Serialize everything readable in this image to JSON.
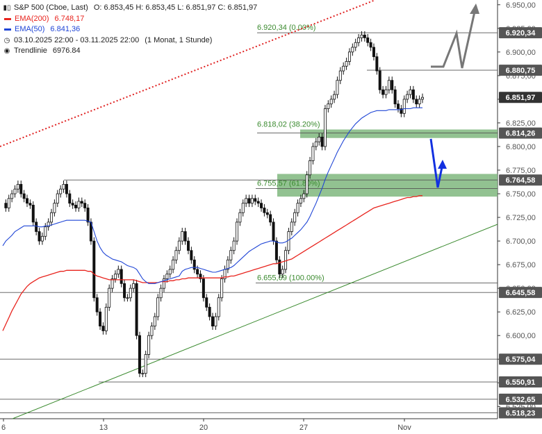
{
  "legend": {
    "title": "S&P 500 (Cboe, Last)",
    "ohlc": "O: 6.853,45   H: 6.853,45   L: 6.851,97   C: 6.851,97",
    "ema200_label": "EMA(200)",
    "ema200_value": "6.748,17",
    "ema50_label": "EMA(50)",
    "ema50_value": "6.841,36",
    "range": "03.10.2025 22:00 - 03.11.2025 22:00",
    "period": "(1 Monat, 1 Stunde)",
    "trend_label": "Trendlinie",
    "trend_value": "6976.84"
  },
  "colors": {
    "ema200": "#e8231d",
    "ema50": "#1f45d6",
    "zone": "#7fb77e",
    "up_trend": "#3a8a2e",
    "fib": "#3a8a2e",
    "arrow_blue": "#1230e0",
    "arrow_grey": "#777777",
    "dotted": "#e02020",
    "price_tag": "#555555"
  },
  "chart_data": {
    "type": "line",
    "y_axis_ticks": [
      "6.950,00",
      "6.925,00",
      "6.900,00",
      "6.875,00",
      "6.850,00",
      "6.825,00",
      "6.800,00",
      "6.775,00",
      "6.750,00",
      "6.725,00",
      "6.700,00",
      "6.675,00",
      "6.650,00",
      "6.625,00",
      "6.600,00",
      "6.575,00",
      "6.550,00",
      "6.525,00"
    ],
    "x_axis_ticks": [
      "6",
      "13",
      "20",
      "27",
      "Nov"
    ],
    "ylim": [
      6512,
      6955
    ],
    "price_levels": [
      {
        "value": 6920.34,
        "label": "6.920,34"
      },
      {
        "value": 6880.75,
        "label": "6.880,75"
      },
      {
        "value": 6851.97,
        "label": "6.851,97"
      },
      {
        "value": 6814.26,
        "label": "6.814,26"
      },
      {
        "value": 6764.58,
        "label": "6.764,58"
      },
      {
        "value": 6645.58,
        "label": "6.645,58"
      },
      {
        "value": 6575.04,
        "label": "6.575,04"
      },
      {
        "value": 6550.91,
        "label": "6.550,91"
      },
      {
        "value": 6532.65,
        "label": "6.532,65"
      },
      {
        "value": 6518.23,
        "label": "6.518,23"
      }
    ],
    "fib_levels": [
      {
        "value": 6920.34,
        "label": "6.920,34 (0.00%)"
      },
      {
        "value": 6818.02,
        "label": "6.818,02 (38.20%)"
      },
      {
        "value": 6755.57,
        "label": "6.755,57 (61.80%)"
      },
      {
        "value": 6655.69,
        "label": "6.655,69 (100.00%)"
      }
    ],
    "zones": [
      {
        "from": 6809,
        "to": 6818
      },
      {
        "from": 6747,
        "to": 6771
      }
    ],
    "price_close": [
      6740,
      6735,
      6745,
      6750,
      6755,
      6760,
      6750,
      6745,
      6740,
      6738,
      6720,
      6710,
      6700,
      6705,
      6715,
      6720,
      6730,
      6740,
      6750,
      6755,
      6760,
      6750,
      6740,
      6738,
      6735,
      6742,
      6740,
      6735,
      6720,
      6700,
      6640,
      6625,
      6610,
      6605,
      6630,
      6650,
      6660,
      6665,
      6670,
      6655,
      6640,
      6640,
      6650,
      6655,
      6600,
      6560,
      6560,
      6580,
      6600,
      6610,
      6620,
      6640,
      6650,
      6660,
      6665,
      6670,
      6680,
      6690,
      6700,
      6710,
      6700,
      6690,
      6680,
      6670,
      6665,
      6660,
      6640,
      6630,
      6620,
      6610,
      6620,
      6640,
      6660,
      6670,
      6680,
      6690,
      6700,
      6720,
      6730,
      6740,
      6745,
      6740,
      6745,
      6742,
      6740,
      6735,
      6730,
      6728,
      6720,
      6700,
      6680,
      6665,
      6670,
      6690,
      6710,
      6720,
      6730,
      6740,
      6745,
      6750,
      6770,
      6785,
      6800,
      6805,
      6810,
      6800,
      6840,
      6845,
      6850,
      6855,
      6870,
      6880,
      6885,
      6890,
      6900,
      6905,
      6910,
      6915,
      6918,
      6915,
      6910,
      6905,
      6895,
      6880,
      6860,
      6855,
      6860,
      6870,
      6860,
      6845,
      6840,
      6835,
      6850,
      6855,
      6860,
      6850,
      6845,
      6850,
      6852
    ],
    "ema50": [
      6695,
      6700,
      6703,
      6706,
      6710,
      6712,
      6714,
      6716,
      6716,
      6716,
      6716,
      6716,
      6715,
      6715,
      6716,
      6716,
      6717,
      6718,
      6719,
      6720,
      6721,
      6722,
      6722,
      6722,
      6722,
      6722,
      6722,
      6722,
      6721,
      6720,
      6710,
      6700,
      6693,
      6688,
      6685,
      6683,
      6681,
      6680,
      6679,
      6678,
      6676,
      6674,
      6673,
      6672,
      6670,
      6665,
      6660,
      6657,
      6655,
      6655,
      6655,
      6656,
      6657,
      6658,
      6659,
      6660,
      6661,
      6662,
      6663,
      6668,
      6670,
      6671,
      6672,
      6672,
      6672,
      6671,
      6670,
      6669,
      6668,
      6667,
      6667,
      6668,
      6669,
      6670,
      6671,
      6672,
      6674,
      6677,
      6680,
      6683,
      6686,
      6689,
      6691,
      6693,
      6695,
      6697,
      6698,
      6699,
      6700,
      6700,
      6699,
      6698,
      6698,
      6699,
      6701,
      6703,
      6706,
      6709,
      6712,
      6716,
      6720,
      6726,
      6733,
      6740,
      6748,
      6756,
      6765,
      6773,
      6780,
      6787,
      6794,
      6800,
      6806,
      6811,
      6816,
      6820,
      6824,
      6827,
      6830,
      6832,
      6834,
      6836,
      6837,
      6838,
      6838,
      6838,
      6838,
      6839,
      6839,
      6839,
      6839,
      6839,
      6840,
      6840,
      6840,
      6841,
      6841,
      6841,
      6841
    ],
    "ema200": [
      6605,
      6612,
      6619,
      6626,
      6632,
      6638,
      6644,
      6648,
      6652,
      6655,
      6657,
      6659,
      6661,
      6662,
      6663,
      6664,
      6665,
      6666,
      6667,
      6668,
      6668,
      6669,
      6669,
      6669,
      6669,
      6669,
      6669,
      6669,
      6668,
      6668,
      6665,
      6663,
      6662,
      6661,
      6660,
      6659,
      6659,
      6659,
      6659,
      6659,
      6659,
      6659,
      6659,
      6659,
      6658,
      6657,
      6656,
      6656,
      6656,
      6656,
      6656,
      6656,
      6657,
      6657,
      6657,
      6658,
      6658,
      6659,
      6659,
      6660,
      6660,
      6661,
      6661,
      6661,
      6661,
      6661,
      6661,
      6661,
      6661,
      6661,
      6661,
      6661,
      6661,
      6662,
      6662,
      6663,
      6663,
      6664,
      6665,
      6666,
      6667,
      6668,
      6669,
      6670,
      6671,
      6672,
      6673,
      6674,
      6675,
      6676,
      6676,
      6677,
      6678,
      6679,
      6680,
      6681,
      6683,
      6685,
      6687,
      6689,
      6691,
      6693,
      6695,
      6697,
      6699,
      6701,
      6703,
      6705,
      6707,
      6709,
      6711,
      6713,
      6715,
      6717,
      6719,
      6721,
      6723,
      6725,
      6727,
      6729,
      6731,
      6733,
      6735,
      6736,
      6737,
      6738,
      6739,
      6740,
      6741,
      6742,
      6743,
      6744,
      6745,
      6746,
      6746,
      6747,
      6747,
      6748,
      6748
    ]
  }
}
